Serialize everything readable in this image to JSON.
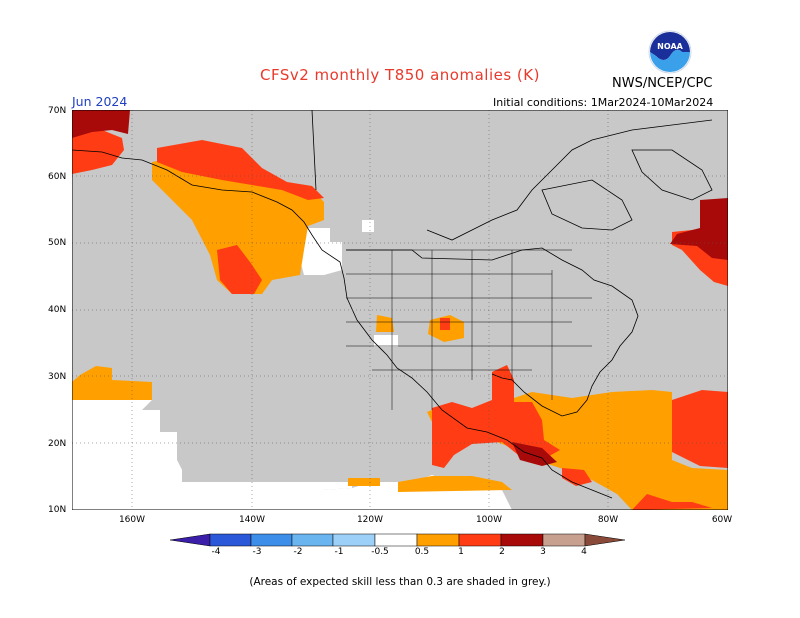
{
  "header": {
    "title": "CFSv2 monthly T850 anomalies (K)",
    "agency": "NWS/NCEP/CPC",
    "month": "Jun 2024",
    "initial_conditions": "Initial conditions: 1Mar2024-10Mar2024",
    "logo_text": "NOAA"
  },
  "axes": {
    "lat_labels": [
      "70N",
      "60N",
      "50N",
      "40N",
      "30N",
      "20N",
      "10N"
    ],
    "lon_labels": [
      "160W",
      "140W",
      "120W",
      "100W",
      "80W",
      "60W"
    ]
  },
  "colorbar": {
    "labels": [
      "-4",
      "-3",
      "-2",
      "-1",
      "-0.5",
      "0.5",
      "1",
      "2",
      "3",
      "4"
    ],
    "colors": [
      "#3b1fa8",
      "#2b58d8",
      "#3c8ee8",
      "#6ab4f0",
      "#ffffff",
      "#ff9f00",
      "#ff3c14",
      "#a80a0a",
      "#c8a090",
      "#8a4a3a"
    ]
  },
  "footer": {
    "note": "(Areas of expected skill less than 0.3 are shaded in grey.)"
  },
  "map_colors": {
    "grey": "#c8c8c8",
    "orange": "#ff9f00",
    "red": "#ff3c14",
    "darkred": "#a80a0a"
  }
}
